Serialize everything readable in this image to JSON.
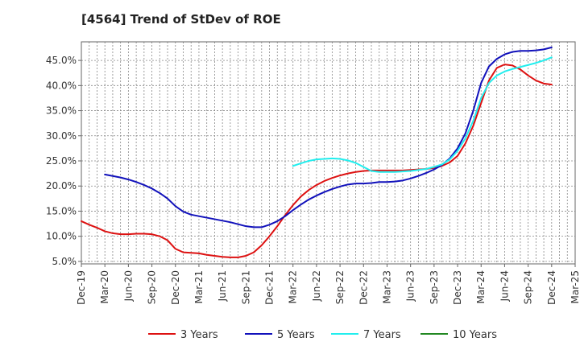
{
  "chart_data": {
    "type": "line",
    "title": "[4564]  Trend of StDev of ROE",
    "xlabel": "",
    "ylabel": "",
    "x_ticks": [
      "Dec-19",
      "Mar-20",
      "Jun-20",
      "Sep-20",
      "Dec-20",
      "Mar-21",
      "Jun-21",
      "Sep-21",
      "Dec-21",
      "Mar-22",
      "Jun-22",
      "Sep-22",
      "Dec-22",
      "Mar-23",
      "Jun-23",
      "Sep-23",
      "Dec-23",
      "Mar-24",
      "Jun-24",
      "Sep-24",
      "Dec-24",
      "Mar-25"
    ],
    "y_ticks": [
      "5.0%",
      "10.0%",
      "15.0%",
      "20.0%",
      "25.0%",
      "30.0%",
      "35.0%",
      "40.0%",
      "45.0%"
    ],
    "ylim": [
      4.5,
      48.7
    ],
    "grid": true,
    "legend_position": "bottom",
    "series": [
      {
        "name": "3 Years",
        "color": "#dd1111",
        "x": [
          "2019-12",
          "2020-01",
          "2020-02",
          "2020-03",
          "2020-04",
          "2020-05",
          "2020-06",
          "2020-07",
          "2020-08",
          "2020-09",
          "2020-10",
          "2020-11",
          "2020-12",
          "2021-01",
          "2021-02",
          "2021-03",
          "2021-04",
          "2021-05",
          "2021-06",
          "2021-07",
          "2021-08",
          "2021-09",
          "2021-10",
          "2021-11",
          "2021-12",
          "2022-01",
          "2022-02",
          "2022-03",
          "2022-04",
          "2022-05",
          "2022-06",
          "2022-07",
          "2022-08",
          "2022-09",
          "2022-10",
          "2022-11",
          "2022-12",
          "2023-01",
          "2023-02",
          "2023-03",
          "2023-04",
          "2023-05",
          "2023-06",
          "2023-07",
          "2023-08",
          "2023-09",
          "2023-10",
          "2023-11",
          "2023-12",
          "2024-01",
          "2024-02",
          "2024-03",
          "2024-04",
          "2024-05",
          "2024-06",
          "2024-07",
          "2024-08",
          "2024-09",
          "2024-10",
          "2024-11",
          "2024-12"
        ],
        "values": [
          13.0,
          12.3,
          11.7,
          11.0,
          10.6,
          10.4,
          10.4,
          10.5,
          10.5,
          10.4,
          10.0,
          9.2,
          7.5,
          6.8,
          6.7,
          6.6,
          6.3,
          6.1,
          5.9,
          5.8,
          5.8,
          6.1,
          6.8,
          8.2,
          10.0,
          12.0,
          14.2,
          16.2,
          17.9,
          19.2,
          20.2,
          21.0,
          21.6,
          22.1,
          22.5,
          22.8,
          23.0,
          23.1,
          23.1,
          23.1,
          23.1,
          23.1,
          23.2,
          23.3,
          23.4,
          23.6,
          24.0,
          24.7,
          26.0,
          28.5,
          32.0,
          36.5,
          41.0,
          43.5,
          44.2,
          44.0,
          43.2,
          42.0,
          41.0,
          40.4,
          40.2
        ]
      },
      {
        "name": "5 Years",
        "color": "#1111bb",
        "x": [
          "2020-03",
          "2020-04",
          "2020-05",
          "2020-06",
          "2020-07",
          "2020-08",
          "2020-09",
          "2020-10",
          "2020-11",
          "2020-12",
          "2021-01",
          "2021-02",
          "2021-03",
          "2021-04",
          "2021-05",
          "2021-06",
          "2021-07",
          "2021-08",
          "2021-09",
          "2021-10",
          "2021-11",
          "2021-12",
          "2022-01",
          "2022-02",
          "2022-03",
          "2022-04",
          "2022-05",
          "2022-06",
          "2022-07",
          "2022-08",
          "2022-09",
          "2022-10",
          "2022-11",
          "2022-12",
          "2023-01",
          "2023-02",
          "2023-03",
          "2023-04",
          "2023-05",
          "2023-06",
          "2023-07",
          "2023-08",
          "2023-09",
          "2023-10",
          "2023-11",
          "2023-12",
          "2024-01",
          "2024-02",
          "2024-03",
          "2024-04",
          "2024-05",
          "2024-06",
          "2024-07",
          "2024-08",
          "2024-09",
          "2024-10",
          "2024-11",
          "2024-12"
        ],
        "values": [
          22.3,
          22.0,
          21.7,
          21.3,
          20.8,
          20.2,
          19.5,
          18.6,
          17.5,
          16.0,
          14.9,
          14.3,
          14.0,
          13.7,
          13.4,
          13.1,
          12.8,
          12.4,
          12.0,
          11.8,
          11.8,
          12.3,
          13.0,
          14.0,
          15.2,
          16.3,
          17.3,
          18.1,
          18.8,
          19.4,
          19.9,
          20.3,
          20.5,
          20.5,
          20.6,
          20.8,
          20.8,
          20.9,
          21.1,
          21.5,
          22.0,
          22.6,
          23.3,
          24.2,
          25.5,
          27.5,
          30.5,
          35.0,
          40.5,
          43.8,
          45.3,
          46.2,
          46.7,
          46.9,
          46.9,
          47.0,
          47.2,
          47.6
        ]
      },
      {
        "name": "7 Years",
        "color": "#22eeee",
        "x": [
          "2022-03",
          "2022-04",
          "2022-05",
          "2022-06",
          "2022-07",
          "2022-08",
          "2022-09",
          "2022-10",
          "2022-11",
          "2022-12",
          "2023-01",
          "2023-02",
          "2023-03",
          "2023-04",
          "2023-05",
          "2023-06",
          "2023-07",
          "2023-08",
          "2023-09",
          "2023-10",
          "2023-11",
          "2023-12",
          "2024-01",
          "2024-02",
          "2024-03",
          "2024-04",
          "2024-05",
          "2024-06",
          "2024-07",
          "2024-08",
          "2024-09",
          "2024-10",
          "2024-11",
          "2024-12"
        ],
        "values": [
          24.0,
          24.5,
          25.0,
          25.3,
          25.4,
          25.5,
          25.4,
          25.1,
          24.6,
          23.8,
          23.0,
          22.8,
          22.8,
          22.8,
          22.9,
          23.0,
          23.2,
          23.4,
          23.8,
          24.3,
          25.3,
          27.0,
          29.5,
          33.0,
          37.5,
          40.5,
          42.0,
          42.8,
          43.3,
          43.7,
          44.1,
          44.5,
          45.0,
          45.6
        ]
      },
      {
        "name": "10 Years",
        "color": "#228822",
        "x": [],
        "values": []
      }
    ]
  }
}
